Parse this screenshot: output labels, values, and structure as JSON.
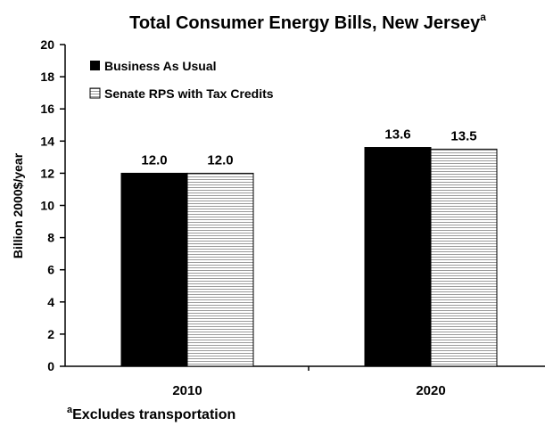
{
  "chart_data": {
    "type": "bar",
    "title": "Total Consumer Energy Bills, New Jersey",
    "title_superscript": "a",
    "ylabel": "Billion 2000$/year",
    "xlabel": "",
    "ylim": [
      0,
      20
    ],
    "yticks": [
      "0",
      "2",
      "4",
      "6",
      "8",
      "10",
      "12",
      "14",
      "16",
      "18",
      "20"
    ],
    "categories": [
      "2010",
      "2020"
    ],
    "series": [
      {
        "name": "Business As Usual",
        "values": [
          12.0,
          13.6
        ],
        "labels": [
          "12.0",
          "13.6"
        ],
        "fill": "solid",
        "color": "#000000"
      },
      {
        "name": "Senate RPS with Tax Credits",
        "values": [
          12.0,
          13.5
        ],
        "labels": [
          "12.0",
          "13.5"
        ],
        "fill": "hatched",
        "color": "#ffffff"
      }
    ],
    "legend_position": "top-left",
    "grid": false,
    "footnote_marker": "a",
    "footnote": "Excludes transportation"
  }
}
